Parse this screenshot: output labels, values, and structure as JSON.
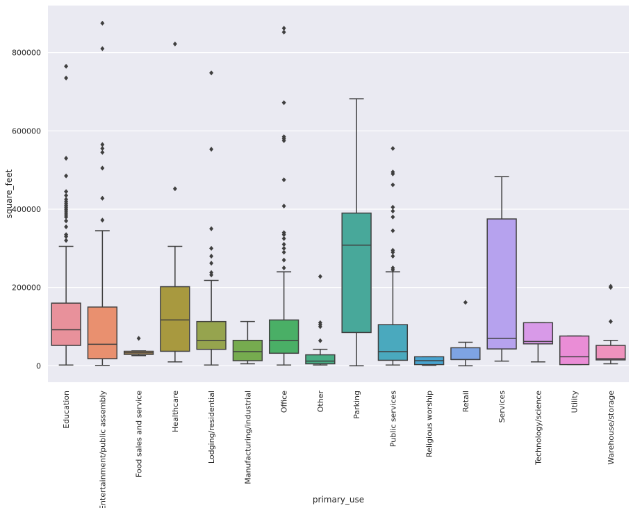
{
  "chart_data": {
    "type": "box",
    "xlabel": "primary_use",
    "ylabel": "square_feet",
    "ylim": [
      -42000,
      920000
    ],
    "yticks": [
      0,
      200000,
      400000,
      600000,
      800000
    ],
    "ytick_labels": [
      "0",
      "200000",
      "400000",
      "600000",
      "800000"
    ],
    "grid": true,
    "background": "#EAEAF2",
    "categories": [
      {
        "name": "Education",
        "color": "#E8919B",
        "whislo": 2000,
        "q1": 52000,
        "med": 92000,
        "q3": 160000,
        "whishi": 305000,
        "fliers": [
          320000,
          330000,
          335000,
          355000,
          370000,
          380000,
          385000,
          390000,
          395000,
          400000,
          405000,
          410000,
          415000,
          420000,
          425000,
          435000,
          445000,
          485000,
          530000,
          735000,
          765000
        ]
      },
      {
        "name": "Entertainment/public assembly",
        "color": "#E9906F",
        "whislo": 1000,
        "q1": 18000,
        "med": 55000,
        "q3": 150000,
        "whishi": 345000,
        "fliers": [
          372000,
          428000,
          505000,
          545000,
          555000,
          565000,
          810000,
          875000
        ]
      },
      {
        "name": "Food sales and service",
        "color": "#C9A060",
        "whislo": 26000,
        "q1": 29000,
        "med": 33000,
        "q3": 37000,
        "whishi": 38000,
        "fliers": [
          70000
        ]
      },
      {
        "name": "Healthcare",
        "color": "#A8993F",
        "whislo": 10000,
        "q1": 37000,
        "med": 117000,
        "q3": 202000,
        "whishi": 305000,
        "fliers": [
          452000,
          822000
        ]
      },
      {
        "name": "Lodging/residential",
        "color": "#96A44E",
        "whislo": 2000,
        "q1": 42000,
        "med": 65000,
        "q3": 113000,
        "whishi": 218000,
        "fliers": [
          232000,
          238000,
          262000,
          280000,
          300000,
          350000,
          553000,
          748000
        ]
      },
      {
        "name": "Manufacturing/industrial",
        "color": "#76AB4F",
        "whislo": 5000,
        "q1": 13000,
        "med": 36000,
        "q3": 65000,
        "whishi": 113000,
        "fliers": []
      },
      {
        "name": "Office",
        "color": "#4AAF66",
        "whislo": 2000,
        "q1": 32000,
        "med": 65000,
        "q3": 117000,
        "whishi": 240000,
        "fliers": [
          250000,
          270000,
          290000,
          300000,
          310000,
          325000,
          335000,
          340000,
          408000,
          475000,
          575000,
          580000,
          585000,
          672000,
          852000,
          862000
        ]
      },
      {
        "name": "Other",
        "color": "#48AD84",
        "whislo": 2000,
        "q1": 5000,
        "med": 12000,
        "q3": 28000,
        "whishi": 42000,
        "fliers": [
          64000,
          100000,
          105000,
          110000,
          228000
        ]
      },
      {
        "name": "Parking",
        "color": "#48A89A",
        "whislo": 0,
        "q1": 85000,
        "med": 308000,
        "q3": 390000,
        "whishi": 682000,
        "fliers": []
      },
      {
        "name": "Public services",
        "color": "#4AA9BE",
        "whislo": 2000,
        "q1": 14000,
        "med": 36000,
        "q3": 105000,
        "whishi": 240000,
        "fliers": [
          245000,
          250000,
          280000,
          290000,
          295000,
          345000,
          380000,
          395000,
          405000,
          462000,
          490000,
          495000,
          555000
        ]
      },
      {
        "name": "Religious worship",
        "color": "#47A3CF",
        "whislo": 1000,
        "q1": 3000,
        "med": 13000,
        "q3": 23000,
        "whishi": 23000,
        "fliers": []
      },
      {
        "name": "Retail",
        "color": "#7EA4E3",
        "whislo": 0,
        "q1": 16000,
        "med": 16000,
        "q3": 46000,
        "whishi": 60000,
        "fliers": [
          162000
        ]
      },
      {
        "name": "Services",
        "color": "#B6A2EE",
        "whislo": 12000,
        "q1": 43000,
        "med": 70000,
        "q3": 375000,
        "whishi": 483000,
        "fliers": []
      },
      {
        "name": "Technology/science",
        "color": "#D89AE8",
        "whislo": 10000,
        "q1": 56000,
        "med": 62000,
        "q3": 110000,
        "whishi": 110000,
        "fliers": []
      },
      {
        "name": "Utility",
        "color": "#EA8DD6",
        "whislo": 3000,
        "q1": 3000,
        "med": 23000,
        "q3": 76000,
        "whishi": 76000,
        "fliers": []
      },
      {
        "name": "Warehouse/storage",
        "color": "#EE92BD",
        "whislo": 5000,
        "q1": 15000,
        "med": 18000,
        "q3": 52000,
        "whishi": 65000,
        "fliers": [
          113000,
          200000,
          203000
        ]
      }
    ]
  }
}
